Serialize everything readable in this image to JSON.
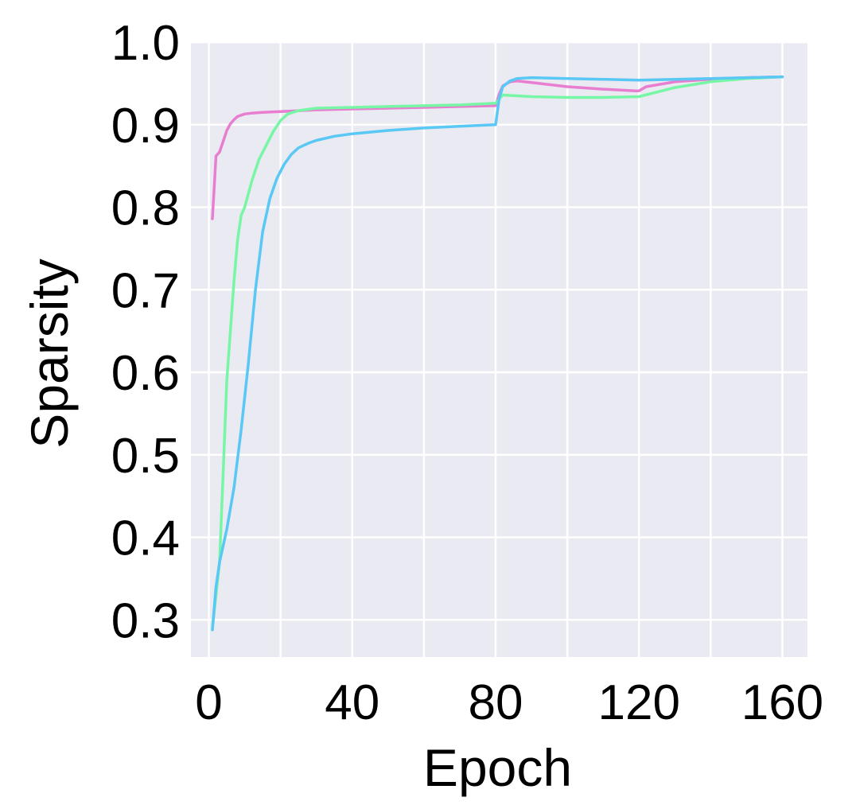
{
  "chart_data": {
    "type": "line",
    "title": "",
    "xlabel": "Epoch",
    "ylabel": "Sparsity",
    "xlim": [
      -5,
      167
    ],
    "ylim": [
      0.255,
      1.0
    ],
    "xticks": [
      0,
      40,
      80,
      120,
      160
    ],
    "yticks": [
      0.3,
      0.4,
      0.5,
      0.6,
      0.7,
      0.8,
      0.9,
      1.0
    ],
    "xtick_labels": [
      "0",
      "40",
      "80",
      "120",
      "160"
    ],
    "ytick_labels": [
      "0.3",
      "0.4",
      "0.5",
      "0.6",
      "0.7",
      "0.8",
      "0.9",
      "1.0"
    ],
    "grid": true,
    "background": "#eaeaf2",
    "series": [
      {
        "color": "#e87ed0",
        "x": [
          1,
          2,
          3,
          4,
          5,
          6,
          7,
          8,
          10,
          12,
          15,
          20,
          30,
          40,
          50,
          60,
          70,
          80,
          81,
          82,
          84,
          86,
          90,
          100,
          110,
          119,
          120,
          122,
          130,
          140,
          150,
          160
        ],
        "y": [
          0.786,
          0.862,
          0.867,
          0.88,
          0.893,
          0.901,
          0.906,
          0.91,
          0.913,
          0.914,
          0.915,
          0.916,
          0.918,
          0.919,
          0.92,
          0.921,
          0.922,
          0.923,
          0.937,
          0.947,
          0.952,
          0.953,
          0.951,
          0.946,
          0.943,
          0.941,
          0.941,
          0.946,
          0.952,
          0.955,
          0.957,
          0.958
        ]
      },
      {
        "color": "#77f7a6",
        "x": [
          1,
          3,
          4,
          5,
          6,
          7,
          8,
          9,
          10,
          12,
          14,
          16,
          18,
          20,
          22,
          25,
          30,
          40,
          50,
          60,
          70,
          80,
          81,
          82,
          90,
          100,
          110,
          120,
          130,
          140,
          150,
          160
        ],
        "y": [
          0.29,
          0.37,
          0.48,
          0.59,
          0.65,
          0.71,
          0.76,
          0.79,
          0.8,
          0.832,
          0.858,
          0.875,
          0.892,
          0.905,
          0.913,
          0.917,
          0.92,
          0.921,
          0.922,
          0.923,
          0.924,
          0.926,
          0.931,
          0.936,
          0.934,
          0.933,
          0.933,
          0.934,
          0.945,
          0.952,
          0.956,
          0.958
        ]
      },
      {
        "color": "#5ac8f5",
        "x": [
          1,
          2,
          3,
          5,
          7,
          9,
          11,
          13,
          15,
          17,
          19,
          21,
          23,
          25,
          28,
          30,
          35,
          40,
          50,
          60,
          70,
          80,
          81,
          82,
          84,
          86,
          90,
          100,
          110,
          120,
          130,
          140,
          150,
          160
        ],
        "y": [
          0.288,
          0.34,
          0.37,
          0.41,
          0.46,
          0.53,
          0.61,
          0.7,
          0.77,
          0.81,
          0.835,
          0.852,
          0.864,
          0.872,
          0.878,
          0.881,
          0.886,
          0.889,
          0.893,
          0.896,
          0.898,
          0.9,
          0.932,
          0.946,
          0.953,
          0.956,
          0.957,
          0.956,
          0.955,
          0.954,
          0.955,
          0.956,
          0.957,
          0.958
        ]
      }
    ]
  }
}
